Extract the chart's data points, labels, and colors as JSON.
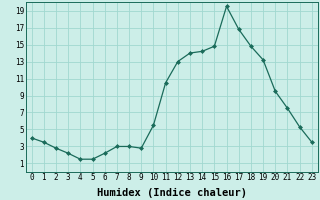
{
  "title": "",
  "xlabel": "Humidex (Indice chaleur)",
  "x": [
    0,
    1,
    2,
    3,
    4,
    5,
    6,
    7,
    8,
    9,
    10,
    11,
    12,
    13,
    14,
    15,
    16,
    17,
    18,
    19,
    20,
    21,
    22,
    23
  ],
  "y": [
    4.0,
    3.5,
    2.8,
    2.2,
    1.5,
    1.5,
    2.2,
    3.0,
    3.0,
    2.8,
    5.5,
    10.5,
    13.0,
    14.0,
    14.2,
    14.8,
    19.5,
    16.8,
    14.8,
    13.2,
    9.5,
    7.5,
    5.3,
    3.5
  ],
  "line_color": "#1a6b5a",
  "marker": "D",
  "marker_size": 2.0,
  "bg_color": "#cceee8",
  "grid_color": "#a0d8d0",
  "ylim": [
    0,
    20
  ],
  "xlim": [
    -0.5,
    23.5
  ],
  "yticks": [
    1,
    3,
    5,
    7,
    9,
    11,
    13,
    15,
    17,
    19
  ],
  "xticks": [
    0,
    1,
    2,
    3,
    4,
    5,
    6,
    7,
    8,
    9,
    10,
    11,
    12,
    13,
    14,
    15,
    16,
    17,
    18,
    19,
    20,
    21,
    22,
    23
  ],
  "tick_label_fontsize": 5.5,
  "xlabel_fontsize": 7.5,
  "linewidth": 0.9
}
